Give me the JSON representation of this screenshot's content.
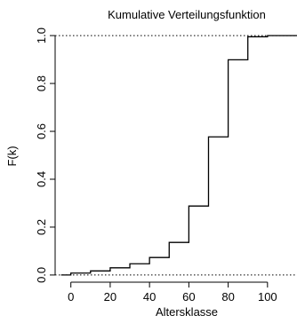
{
  "chart_data": {
    "type": "step",
    "title": "Kumulative Verteilungsfunktion",
    "xlabel": "Altersklasse",
    "ylabel": "F(k)",
    "xlim": [
      -8,
      115
    ],
    "ylim": [
      -0.03,
      1.03
    ],
    "x_ticks": [
      0,
      20,
      40,
      60,
      80,
      100
    ],
    "y_ticks": [
      0.0,
      0.2,
      0.4,
      0.6,
      0.8,
      1.0
    ],
    "x_tick_labels": [
      "0",
      "20",
      "40",
      "60",
      "80",
      "100"
    ],
    "y_tick_labels": [
      "0.0",
      "0.2",
      "0.4",
      "0.6",
      "0.8",
      "1.0"
    ],
    "reference_lines": [
      0,
      1
    ],
    "reference_line_style": "dotted",
    "grid": false,
    "legend": "none",
    "series_color": "#000000",
    "steps": [
      {
        "x": -5,
        "y": 0.0
      },
      {
        "x": 0,
        "y": 0.008
      },
      {
        "x": 10,
        "y": 0.017
      },
      {
        "x": 20,
        "y": 0.03
      },
      {
        "x": 30,
        "y": 0.047
      },
      {
        "x": 40,
        "y": 0.073
      },
      {
        "x": 50,
        "y": 0.136
      },
      {
        "x": 60,
        "y": 0.288
      },
      {
        "x": 70,
        "y": 0.577
      },
      {
        "x": 80,
        "y": 0.899
      },
      {
        "x": 90,
        "y": 0.995
      },
      {
        "x": 100,
        "y": 1.0
      }
    ],
    "x_end": 115
  }
}
